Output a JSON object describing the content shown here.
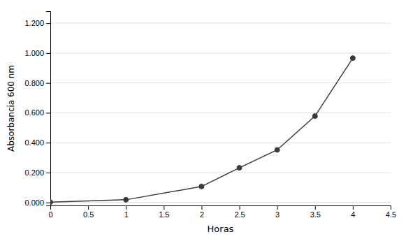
{
  "chart_data": {
    "type": "line",
    "x": [
      0,
      1,
      2,
      2.5,
      3,
      3.5,
      4
    ],
    "values": [
      0.002,
      0.018,
      0.107,
      0.232,
      0.352,
      0.578,
      0.966
    ],
    "xlabel": "Horas",
    "ylabel": "Absorbancia 600 nm",
    "xlim": [
      0,
      4.5
    ],
    "ylim": [
      -0.02,
      1.28
    ],
    "xticks": [
      0,
      0.5,
      1.0,
      1.5,
      2.0,
      2.5,
      3.0,
      3.5,
      4.0,
      4.5
    ],
    "yticks": [
      {
        "value": 0.0,
        "label": "0.000"
      },
      {
        "value": 0.2,
        "label": "0.200"
      },
      {
        "value": 0.4,
        "label": "0.400"
      },
      {
        "value": 0.6,
        "label": "0.600"
      },
      {
        "value": 0.8,
        "label": "0.800"
      },
      {
        "value": 1.0,
        "label": "1.000"
      },
      {
        "value": 1.2,
        "label": "1.200"
      }
    ],
    "color": "#3a3a3a",
    "marker": "circle",
    "grid": true
  }
}
